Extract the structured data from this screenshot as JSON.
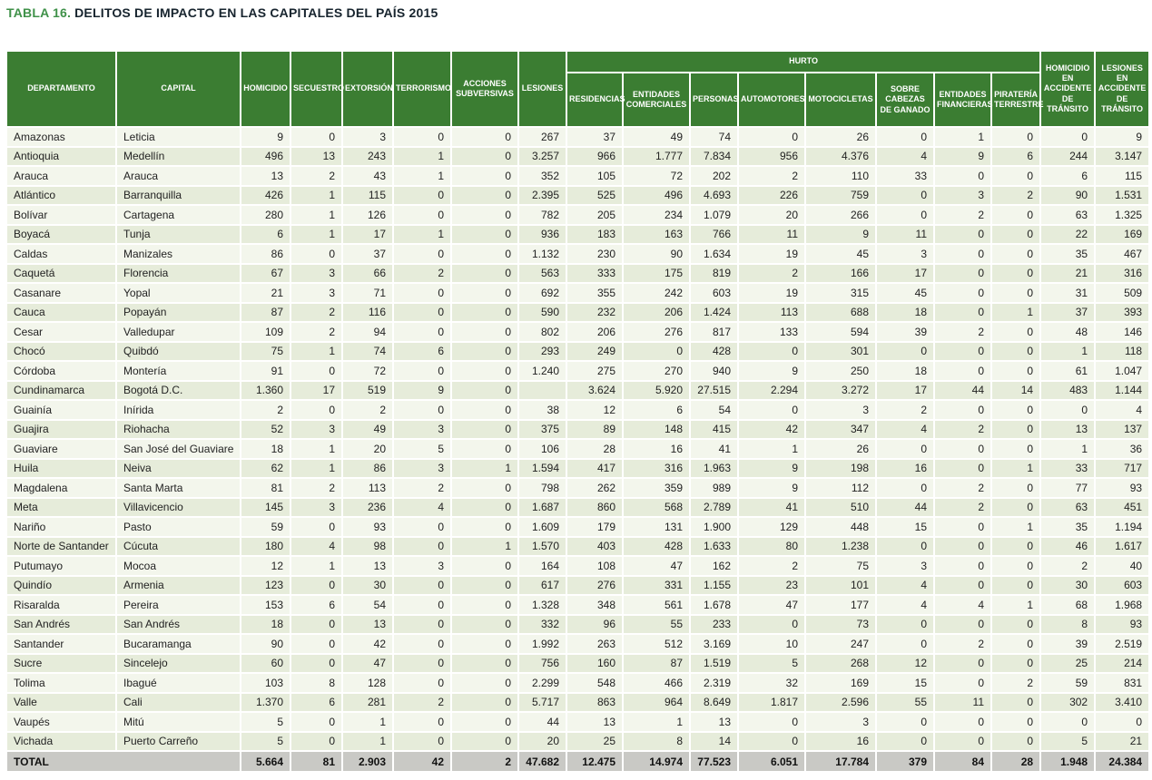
{
  "page": {
    "title_label": "TABLA 16.",
    "title_text": "DELITOS DE IMPACTO EN LAS CAPITALES DEL PAÍS 2015"
  },
  "colors": {
    "header_green": "#3b7d32",
    "title_green": "#3f9149",
    "title_dark": "#17242e",
    "row_light": "#f3f6ec",
    "row_dark": "#e6ecda",
    "total_gray": "#c9c9c5"
  },
  "table": {
    "headers": {
      "departamento": "DEPARTAMENTO",
      "capital": "CAPITAL",
      "homicidio": "HOMICIDIO",
      "secuestro": "SECUESTRO",
      "extorsion": "EXTORSIÓN",
      "terrorismo": "TERRORISMO",
      "acciones_subversivas": "ACCIONES SUBVERSIVAS",
      "lesiones": "LESIONES",
      "hurto_group": "HURTO",
      "residencias": "RESIDENCIAS",
      "entidades_comerciales": "ENTIDADES COMERCIALES",
      "personas": "PERSONAS",
      "automotores": "AUTOMOTORES",
      "motocicletas": "MOTOCICLETAS",
      "sobre_cabezas_ganado": "SOBRE CABEZAS DE GANADO",
      "entidades_financieras": "ENTIDADES FINANCIERAS",
      "pirateria_terrestre": "PIRATERÍA TERRESTRE",
      "homicidio_accidente_transito": "HOMICIDIO EN ACCIDENTE DE TRÁNSITO",
      "lesiones_accidente_transito": "LESIONES EN ACCIDENTE DE TRÁNSITO"
    },
    "column_keys": [
      "homicidio",
      "secuestro",
      "extorsion",
      "terrorismo",
      "acciones-subversivas",
      "lesiones",
      "hurto-residencias",
      "hurto-entidades-comerciales",
      "hurto-personas",
      "hurto-automotores",
      "hurto-motocicletas",
      "hurto-sobre-cabezas-ganado",
      "hurto-entidades-financieras",
      "hurto-pirateria-terrestre",
      "homicidio-accidente-transito",
      "lesiones-accidente-transito"
    ],
    "rows": [
      {
        "departamento": "Amazonas",
        "capital": "Leticia",
        "values": [
          "9",
          "0",
          "3",
          "0",
          "0",
          "267",
          "37",
          "49",
          "74",
          "0",
          "26",
          "0",
          "1",
          "0",
          "0",
          "9"
        ]
      },
      {
        "departamento": "Antioquia",
        "capital": "Medellín",
        "values": [
          "496",
          "13",
          "243",
          "1",
          "0",
          "3.257",
          "966",
          "1.777",
          "7.834",
          "956",
          "4.376",
          "4",
          "9",
          "6",
          "244",
          "3.147"
        ]
      },
      {
        "departamento": "Arauca",
        "capital": "Arauca",
        "values": [
          "13",
          "2",
          "43",
          "1",
          "0",
          "352",
          "105",
          "72",
          "202",
          "2",
          "110",
          "33",
          "0",
          "0",
          "6",
          "115"
        ]
      },
      {
        "departamento": "Atlántico",
        "capital": "Barranquilla",
        "values": [
          "426",
          "1",
          "115",
          "0",
          "0",
          "2.395",
          "525",
          "496",
          "4.693",
          "226",
          "759",
          "0",
          "3",
          "2",
          "90",
          "1.531"
        ]
      },
      {
        "departamento": "Bolívar",
        "capital": "Cartagena",
        "values": [
          "280",
          "1",
          "126",
          "0",
          "0",
          "782",
          "205",
          "234",
          "1.079",
          "20",
          "266",
          "0",
          "2",
          "0",
          "63",
          "1.325"
        ]
      },
      {
        "departamento": "Boyacá",
        "capital": "Tunja",
        "values": [
          "6",
          "1",
          "17",
          "1",
          "0",
          "936",
          "183",
          "163",
          "766",
          "11",
          "9",
          "11",
          "0",
          "0",
          "22",
          "169"
        ]
      },
      {
        "departamento": "Caldas",
        "capital": "Manizales",
        "values": [
          "86",
          "0",
          "37",
          "0",
          "0",
          "1.132",
          "230",
          "90",
          "1.634",
          "19",
          "45",
          "3",
          "0",
          "0",
          "35",
          "467"
        ]
      },
      {
        "departamento": "Caquetá",
        "capital": "Florencia",
        "values": [
          "67",
          "3",
          "66",
          "2",
          "0",
          "563",
          "333",
          "175",
          "819",
          "2",
          "166",
          "17",
          "0",
          "0",
          "21",
          "316"
        ]
      },
      {
        "departamento": "Casanare",
        "capital": "Yopal",
        "values": [
          "21",
          "3",
          "71",
          "0",
          "0",
          "692",
          "355",
          "242",
          "603",
          "19",
          "315",
          "45",
          "0",
          "0",
          "31",
          "509"
        ]
      },
      {
        "departamento": "Cauca",
        "capital": "Popayán",
        "values": [
          "87",
          "2",
          "116",
          "0",
          "0",
          "590",
          "232",
          "206",
          "1.424",
          "113",
          "688",
          "18",
          "0",
          "1",
          "37",
          "393"
        ]
      },
      {
        "departamento": "Cesar",
        "capital": "Valledupar",
        "values": [
          "109",
          "2",
          "94",
          "0",
          "0",
          "802",
          "206",
          "276",
          "817",
          "133",
          "594",
          "39",
          "2",
          "0",
          "48",
          "146"
        ]
      },
      {
        "departamento": "Chocó",
        "capital": "Quibdó",
        "values": [
          "75",
          "1",
          "74",
          "6",
          "0",
          "293",
          "249",
          "0",
          "428",
          "0",
          "301",
          "0",
          "0",
          "0",
          "1",
          "118"
        ]
      },
      {
        "departamento": "Córdoba",
        "capital": "Montería",
        "values": [
          "91",
          "0",
          "72",
          "0",
          "0",
          "1.240",
          "275",
          "270",
          "940",
          "9",
          "250",
          "18",
          "0",
          "0",
          "61",
          "1.047"
        ]
      },
      {
        "departamento": "Cundinamarca",
        "capital": "Bogotá D.C.",
        "values": [
          "1.360",
          "17",
          "519",
          "9",
          "0",
          "",
          "3.624",
          "5.920",
          "27.515",
          "2.294",
          "3.272",
          "17",
          "44",
          "14",
          "483",
          "1.144"
        ]
      },
      {
        "departamento": "Guainía",
        "capital": "Inírida",
        "values": [
          "2",
          "0",
          "2",
          "0",
          "0",
          "38",
          "12",
          "6",
          "54",
          "0",
          "3",
          "2",
          "0",
          "0",
          "0",
          "4"
        ]
      },
      {
        "departamento": "Guajira",
        "capital": "Riohacha",
        "values": [
          "52",
          "3",
          "49",
          "3",
          "0",
          "375",
          "89",
          "148",
          "415",
          "42",
          "347",
          "4",
          "2",
          "0",
          "13",
          "137"
        ]
      },
      {
        "departamento": "Guaviare",
        "capital": "San José del Guaviare",
        "values": [
          "18",
          "1",
          "20",
          "5",
          "0",
          "106",
          "28",
          "16",
          "41",
          "1",
          "26",
          "0",
          "0",
          "0",
          "1",
          "36"
        ]
      },
      {
        "departamento": "Huila",
        "capital": "Neiva",
        "values": [
          "62",
          "1",
          "86",
          "3",
          "1",
          "1.594",
          "417",
          "316",
          "1.963",
          "9",
          "198",
          "16",
          "0",
          "1",
          "33",
          "717"
        ]
      },
      {
        "departamento": "Magdalena",
        "capital": "Santa Marta",
        "values": [
          "81",
          "2",
          "113",
          "2",
          "0",
          "798",
          "262",
          "359",
          "989",
          "9",
          "112",
          "0",
          "2",
          "0",
          "77",
          "93"
        ]
      },
      {
        "departamento": "Meta",
        "capital": "Villavicencio",
        "values": [
          "145",
          "3",
          "236",
          "4",
          "0",
          "1.687",
          "860",
          "568",
          "2.789",
          "41",
          "510",
          "44",
          "2",
          "0",
          "63",
          "451"
        ]
      },
      {
        "departamento": "Nariño",
        "capital": "Pasto",
        "values": [
          "59",
          "0",
          "93",
          "0",
          "0",
          "1.609",
          "179",
          "131",
          "1.900",
          "129",
          "448",
          "15",
          "0",
          "1",
          "35",
          "1.194"
        ]
      },
      {
        "departamento": "Norte de Santander",
        "capital": "Cúcuta",
        "values": [
          "180",
          "4",
          "98",
          "0",
          "1",
          "1.570",
          "403",
          "428",
          "1.633",
          "80",
          "1.238",
          "0",
          "0",
          "0",
          "46",
          "1.617"
        ]
      },
      {
        "departamento": "Putumayo",
        "capital": "Mocoa",
        "values": [
          "12",
          "1",
          "13",
          "3",
          "0",
          "164",
          "108",
          "47",
          "162",
          "2",
          "75",
          "3",
          "0",
          "0",
          "2",
          "40"
        ]
      },
      {
        "departamento": "Quindío",
        "capital": "Armenia",
        "values": [
          "123",
          "0",
          "30",
          "0",
          "0",
          "617",
          "276",
          "331",
          "1.155",
          "23",
          "101",
          "4",
          "0",
          "0",
          "30",
          "603"
        ]
      },
      {
        "departamento": "Risaralda",
        "capital": "Pereira",
        "values": [
          "153",
          "6",
          "54",
          "0",
          "0",
          "1.328",
          "348",
          "561",
          "1.678",
          "47",
          "177",
          "4",
          "4",
          "1",
          "68",
          "1.968"
        ]
      },
      {
        "departamento": "San Andrés",
        "capital": "San Andrés",
        "values": [
          "18",
          "0",
          "13",
          "0",
          "0",
          "332",
          "96",
          "55",
          "233",
          "0",
          "73",
          "0",
          "0",
          "0",
          "8",
          "93"
        ]
      },
      {
        "departamento": "Santander",
        "capital": "Bucaramanga",
        "values": [
          "90",
          "0",
          "42",
          "0",
          "0",
          "1.992",
          "263",
          "512",
          "3.169",
          "10",
          "247",
          "0",
          "2",
          "0",
          "39",
          "2.519"
        ]
      },
      {
        "departamento": "Sucre",
        "capital": "Sincelejo",
        "values": [
          "60",
          "0",
          "47",
          "0",
          "0",
          "756",
          "160",
          "87",
          "1.519",
          "5",
          "268",
          "12",
          "0",
          "0",
          "25",
          "214"
        ]
      },
      {
        "departamento": "Tolima",
        "capital": "Ibagué",
        "values": [
          "103",
          "8",
          "128",
          "0",
          "0",
          "2.299",
          "548",
          "466",
          "2.319",
          "32",
          "169",
          "15",
          "0",
          "2",
          "59",
          "831"
        ]
      },
      {
        "departamento": "Valle",
        "capital": "Cali",
        "values": [
          "1.370",
          "6",
          "281",
          "2",
          "0",
          "5.717",
          "863",
          "964",
          "8.649",
          "1.817",
          "2.596",
          "55",
          "11",
          "0",
          "302",
          "3.410"
        ]
      },
      {
        "departamento": "Vaupés",
        "capital": "Mitú",
        "values": [
          "5",
          "0",
          "1",
          "0",
          "0",
          "44",
          "13",
          "1",
          "13",
          "0",
          "3",
          "0",
          "0",
          "0",
          "0",
          "0"
        ]
      },
      {
        "departamento": "Vichada",
        "capital": "Puerto Carreño",
        "values": [
          "5",
          "0",
          "1",
          "0",
          "0",
          "20",
          "25",
          "8",
          "14",
          "0",
          "16",
          "0",
          "0",
          "0",
          "5",
          "21"
        ]
      }
    ],
    "total": {
      "label": "TOTAL",
      "values": [
        "5.664",
        "81",
        "2.903",
        "42",
        "2",
        "47.682",
        "12.475",
        "14.974",
        "77.523",
        "6.051",
        "17.784",
        "379",
        "84",
        "28",
        "1.948",
        "24.384"
      ]
    }
  }
}
